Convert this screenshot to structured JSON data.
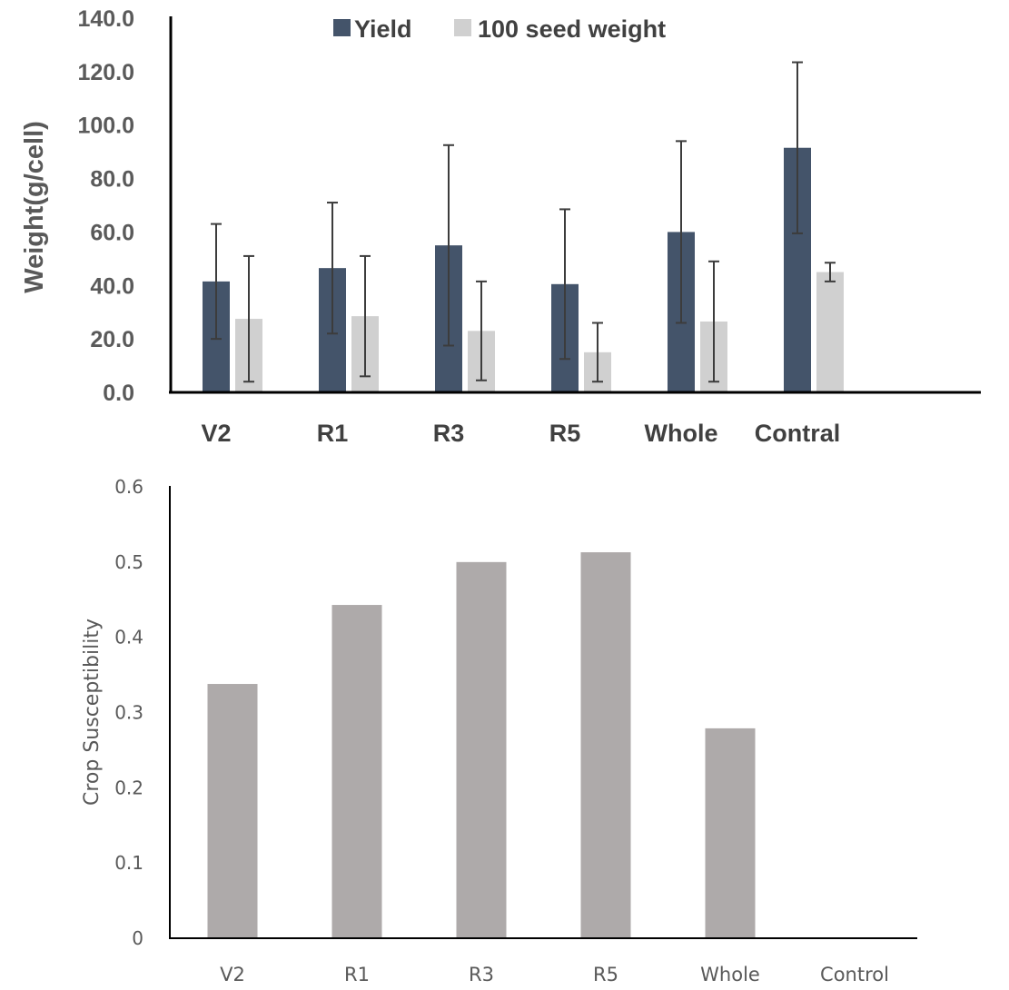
{
  "chart_data": [
    {
      "type": "bar",
      "title": "",
      "xlabel": "",
      "ylabel": "Weight(g/cell)",
      "ylim": [
        0,
        140
      ],
      "yticks": [
        "0.0",
        "20.0",
        "40.0",
        "60.0",
        "80.0",
        "100.0",
        "120.0",
        "140.0"
      ],
      "categories": [
        "V2",
        "R1",
        "R3",
        "R5",
        "Whole",
        "Contral"
      ],
      "legend_position": "top",
      "series": [
        {
          "name": "Yield",
          "color": "#44546a",
          "values": [
            41.5,
            46.5,
            55.0,
            40.5,
            60.0,
            91.5
          ],
          "error": [
            21.5,
            24.5,
            37.5,
            28.0,
            34.0,
            32.0
          ]
        },
        {
          "name": "100 seed weight",
          "color": "#d0d0d0",
          "values": [
            27.5,
            28.5,
            23.0,
            15.0,
            26.5,
            45.0
          ],
          "error": [
            23.5,
            22.5,
            18.5,
            11.0,
            22.5,
            3.5
          ]
        }
      ]
    },
    {
      "type": "bar",
      "title": "",
      "xlabel": "",
      "ylabel": "Crop Susceptibility",
      "ylim": [
        0,
        0.6
      ],
      "yticks": [
        "0",
        "0.1",
        "0.2",
        "0.3",
        "0.4",
        "0.5",
        "0.6"
      ],
      "categories": [
        "V2",
        "R1",
        "R3",
        "R5",
        "Whole",
        "Control"
      ],
      "series": [
        {
          "name": "Crop Susceptibility",
          "color": "#aeaaaa",
          "values": [
            0.338,
            0.443,
            0.5,
            0.513,
            0.279,
            0
          ]
        }
      ]
    }
  ]
}
